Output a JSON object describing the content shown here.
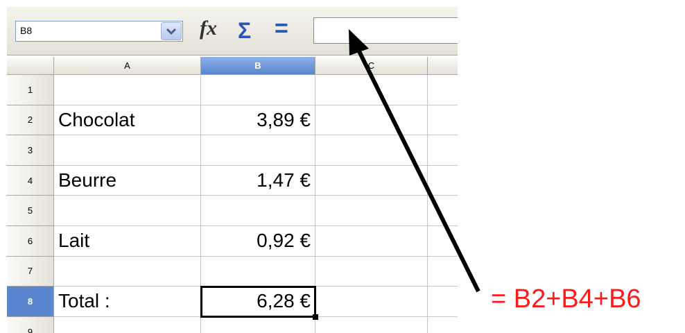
{
  "name_box": "B8",
  "toolbar": {
    "function_wizard": "fx",
    "sum": "Σ",
    "formula": "="
  },
  "columns": [
    "A",
    "B",
    "C"
  ],
  "rows": [
    {
      "number": "1"
    },
    {
      "number": "2",
      "a": "Chocolat",
      "b": "3,89 €"
    },
    {
      "number": "3"
    },
    {
      "number": "4",
      "a": "Beurre",
      "b": "1,47 €"
    },
    {
      "number": "5"
    },
    {
      "number": "6",
      "a": "Lait",
      "b": "0,92 €"
    },
    {
      "number": "7"
    },
    {
      "number": "8",
      "a": "Total :",
      "b": "6,28 €"
    },
    {
      "number": "9"
    }
  ],
  "selected": {
    "column": 1,
    "row": 7
  },
  "annotation": "= B2+B4+B6"
}
